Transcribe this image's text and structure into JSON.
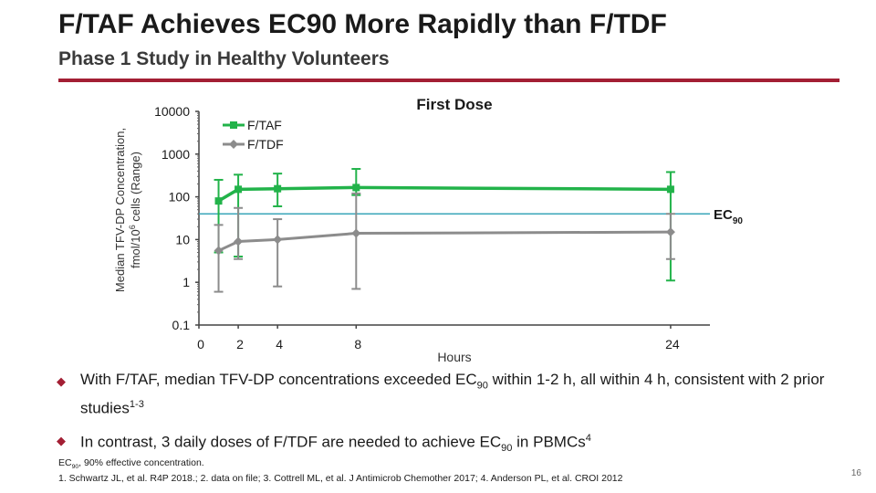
{
  "slide": {
    "title": "F/TAF Achieves EC90 More Rapidly than F/TDF",
    "subtitle": "Phase 1 Study in Healthy Volunteers",
    "page_number": "16",
    "accent_color": "#a31f34"
  },
  "bullets": [
    {
      "text_a": "With F/TAF, median TFV-DP concentrations exceeded EC",
      "sub": "90",
      "text_b": " within 1-2 h, all within 4 h, consistent with 2 prior studies",
      "sup": "1-3"
    },
    {
      "text_a": "In contrast, 3 daily doses of F/TDF are needed to achieve EC",
      "sub": "90",
      "text_b": " in PBMCs",
      "sup": "4"
    }
  ],
  "footnotes": {
    "line1_a": "EC",
    "line1_sub": "90",
    "line1_b": ", 90% effective concentration.",
    "line2": "1. Schwartz JL, et al. R4P 2018.; 2. data on file; 3. Cottrell ML, et al. J Antimicrob Chemother 2017; 4. Anderson PL, et al. CROI 2012"
  },
  "chart_data": {
    "type": "line",
    "title": "First Dose",
    "ylabel_line1": "Median TFV-DP Concentration,",
    "ylabel_line2_a": "fmol/10",
    "ylabel_line2_sup": "6",
    "ylabel_line2_b": " cells (Range)",
    "xlabel": "Hours",
    "y_scale": "log",
    "ylim": [
      0.1,
      10000
    ],
    "xlim": [
      0,
      26
    ],
    "y_ticks": [
      0.1,
      1,
      10,
      100,
      1000,
      10000
    ],
    "y_tick_labels": [
      "0.1",
      "1",
      "10",
      "100",
      "1000",
      "10000"
    ],
    "x_ticks": [
      0,
      2,
      4,
      8,
      24
    ],
    "x_tick_labels": [
      "0",
      "2",
      "4",
      "8",
      "24"
    ],
    "reference_line": {
      "value": 40,
      "label_main": "EC",
      "label_sub": "90",
      "color": "#3aa6b9"
    },
    "legend_position": "top-center",
    "series": [
      {
        "name": "F/TAF",
        "color": "#22b34a",
        "points": [
          {
            "x": 1,
            "y": 80,
            "lo": 5,
            "hi": 250
          },
          {
            "x": 2,
            "y": 150,
            "lo": 4,
            "hi": 330
          },
          {
            "x": 4,
            "y": 155,
            "lo": 60,
            "hi": 350
          },
          {
            "x": 8,
            "y": 165,
            "lo": 110,
            "hi": 450
          },
          {
            "x": 24,
            "y": 150,
            "lo": 1.1,
            "hi": 380
          }
        ]
      },
      {
        "name": "F/TDF",
        "color": "#8c8c8c",
        "points": [
          {
            "x": 1,
            "y": 5.5,
            "lo": 0.6,
            "hi": 22
          },
          {
            "x": 2,
            "y": 9,
            "lo": 3.5,
            "hi": 55
          },
          {
            "x": 4,
            "y": 10,
            "lo": 0.8,
            "hi": 30
          },
          {
            "x": 8,
            "y": 14,
            "lo": 0.7,
            "hi": 120
          },
          {
            "x": 24,
            "y": 15,
            "lo": 3.5,
            "hi": 40
          }
        ]
      }
    ]
  }
}
